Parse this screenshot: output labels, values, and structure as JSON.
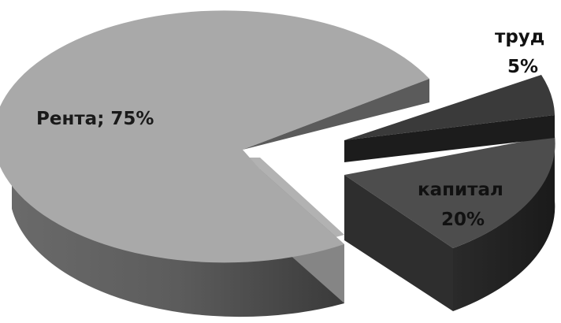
{
  "chart_data": {
    "type": "pie",
    "style": "3d-exploded",
    "title": "",
    "slices": [
      {
        "label": "Рента",
        "value": 75,
        "text": "Рента; 75%",
        "color": "#a9a9a9"
      },
      {
        "label": "капитал",
        "value": 20,
        "text_lines": [
          "капитал",
          "20%"
        ],
        "color": "#4d4d4d"
      },
      {
        "label": "труд",
        "value": 5,
        "text_lines": [
          "труд",
          "5%"
        ],
        "color": "#2f2f2f"
      }
    ]
  }
}
